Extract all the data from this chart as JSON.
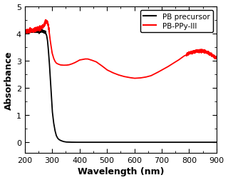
{
  "title": "",
  "xlabel": "Wavelength (nm)",
  "ylabel": "Absorbance",
  "xlim": [
    200,
    900
  ],
  "ylim": [
    -0.4,
    5.0
  ],
  "yticks": [
    0,
    1,
    2,
    3,
    4,
    5
  ],
  "xticks": [
    200,
    300,
    400,
    500,
    600,
    700,
    800,
    900
  ],
  "legend": [
    "PB precursor",
    "PB-PPy-III"
  ],
  "line_colors": [
    "black",
    "red"
  ],
  "linewidth": 1.3,
  "background_color": "#ffffff",
  "pb_precursor": {
    "x": [
      200,
      205,
      210,
      215,
      220,
      225,
      230,
      235,
      240,
      245,
      250,
      255,
      260,
      265,
      270,
      275,
      278,
      280,
      283,
      285,
      287,
      290,
      293,
      295,
      298,
      300,
      305,
      310,
      315,
      320,
      325,
      330,
      340,
      350,
      360,
      380,
      400,
      450,
      500,
      600,
      700,
      800,
      900
    ],
    "y": [
      4.08,
      4.07,
      4.09,
      4.08,
      4.1,
      4.09,
      4.08,
      4.07,
      4.08,
      4.09,
      4.08,
      4.09,
      4.08,
      4.07,
      4.06,
      4.02,
      3.98,
      3.92,
      3.75,
      3.55,
      3.3,
      2.9,
      2.4,
      2.1,
      1.6,
      1.2,
      0.75,
      0.45,
      0.25,
      0.15,
      0.1,
      0.07,
      0.03,
      0.01,
      0.005,
      0.0,
      0.0,
      0.0,
      0.0,
      0.0,
      0.0,
      0.0,
      0.0
    ]
  },
  "pb_ppy_iii": {
    "x": [
      200,
      205,
      210,
      215,
      220,
      225,
      230,
      235,
      240,
      245,
      250,
      255,
      260,
      265,
      270,
      273,
      276,
      278,
      280,
      282,
      284,
      286,
      288,
      290,
      292,
      295,
      298,
      300,
      305,
      310,
      315,
      320,
      330,
      340,
      350,
      360,
      370,
      380,
      390,
      400,
      420,
      430,
      440,
      460,
      480,
      500,
      520,
      540,
      560,
      580,
      600,
      620,
      640,
      660,
      680,
      700,
      720,
      740,
      760,
      780,
      800,
      820,
      840,
      860,
      880,
      900
    ],
    "y": [
      4.07,
      4.07,
      4.08,
      4.09,
      4.1,
      4.11,
      4.12,
      4.13,
      4.14,
      4.15,
      4.17,
      4.19,
      4.21,
      4.25,
      4.3,
      4.35,
      4.4,
      4.43,
      4.44,
      4.42,
      4.38,
      4.28,
      4.15,
      4.0,
      3.82,
      3.6,
      3.42,
      3.28,
      3.1,
      2.98,
      2.91,
      2.88,
      2.84,
      2.83,
      2.83,
      2.84,
      2.87,
      2.91,
      2.96,
      3.02,
      3.06,
      3.06,
      3.03,
      2.96,
      2.82,
      2.66,
      2.56,
      2.48,
      2.42,
      2.38,
      2.35,
      2.36,
      2.39,
      2.44,
      2.54,
      2.65,
      2.76,
      2.89,
      3.01,
      3.16,
      3.26,
      3.33,
      3.36,
      3.33,
      3.22,
      3.1
    ]
  }
}
